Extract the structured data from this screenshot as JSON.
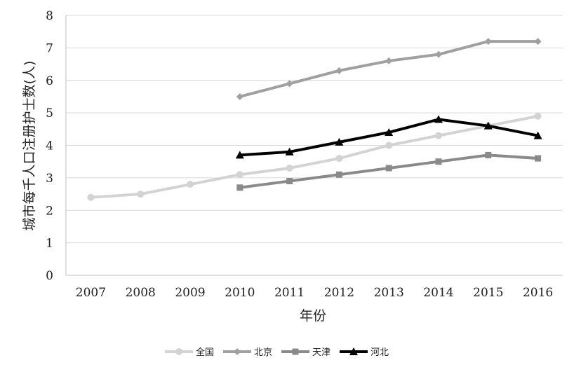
{
  "chart_data": {
    "type": "line",
    "title": "",
    "xlabel": "年份",
    "ylabel": "城市每千人口注册护士数(人)",
    "categories": [
      "2007",
      "2008",
      "2009",
      "2010",
      "2011",
      "2012",
      "2013",
      "2014",
      "2015",
      "2016"
    ],
    "ylim": [
      0,
      8
    ],
    "yticks": [
      "0",
      "1",
      "2",
      "3",
      "4",
      "5",
      "6",
      "7",
      "8"
    ],
    "grid": "horizontal",
    "legend_position": "bottom",
    "series": [
      {
        "name": "全国",
        "color": "#d3d3d3",
        "marker": "circle",
        "values": [
          2.4,
          2.5,
          2.8,
          3.1,
          3.3,
          3.6,
          4.0,
          4.3,
          4.6,
          4.9
        ]
      },
      {
        "name": "北京",
        "color": "#a0a0a0",
        "marker": "diamond",
        "values": [
          null,
          null,
          null,
          5.5,
          5.9,
          6.3,
          6.6,
          6.8,
          7.2,
          7.2
        ]
      },
      {
        "name": "天津",
        "color": "#8a8a8a",
        "marker": "square",
        "values": [
          null,
          null,
          null,
          2.7,
          2.9,
          3.1,
          3.3,
          3.5,
          3.7,
          3.6
        ]
      },
      {
        "name": "河北",
        "color": "#000000",
        "marker": "triangle",
        "values": [
          null,
          null,
          null,
          3.7,
          3.8,
          4.1,
          4.4,
          4.8,
          4.6,
          4.3
        ]
      }
    ]
  }
}
